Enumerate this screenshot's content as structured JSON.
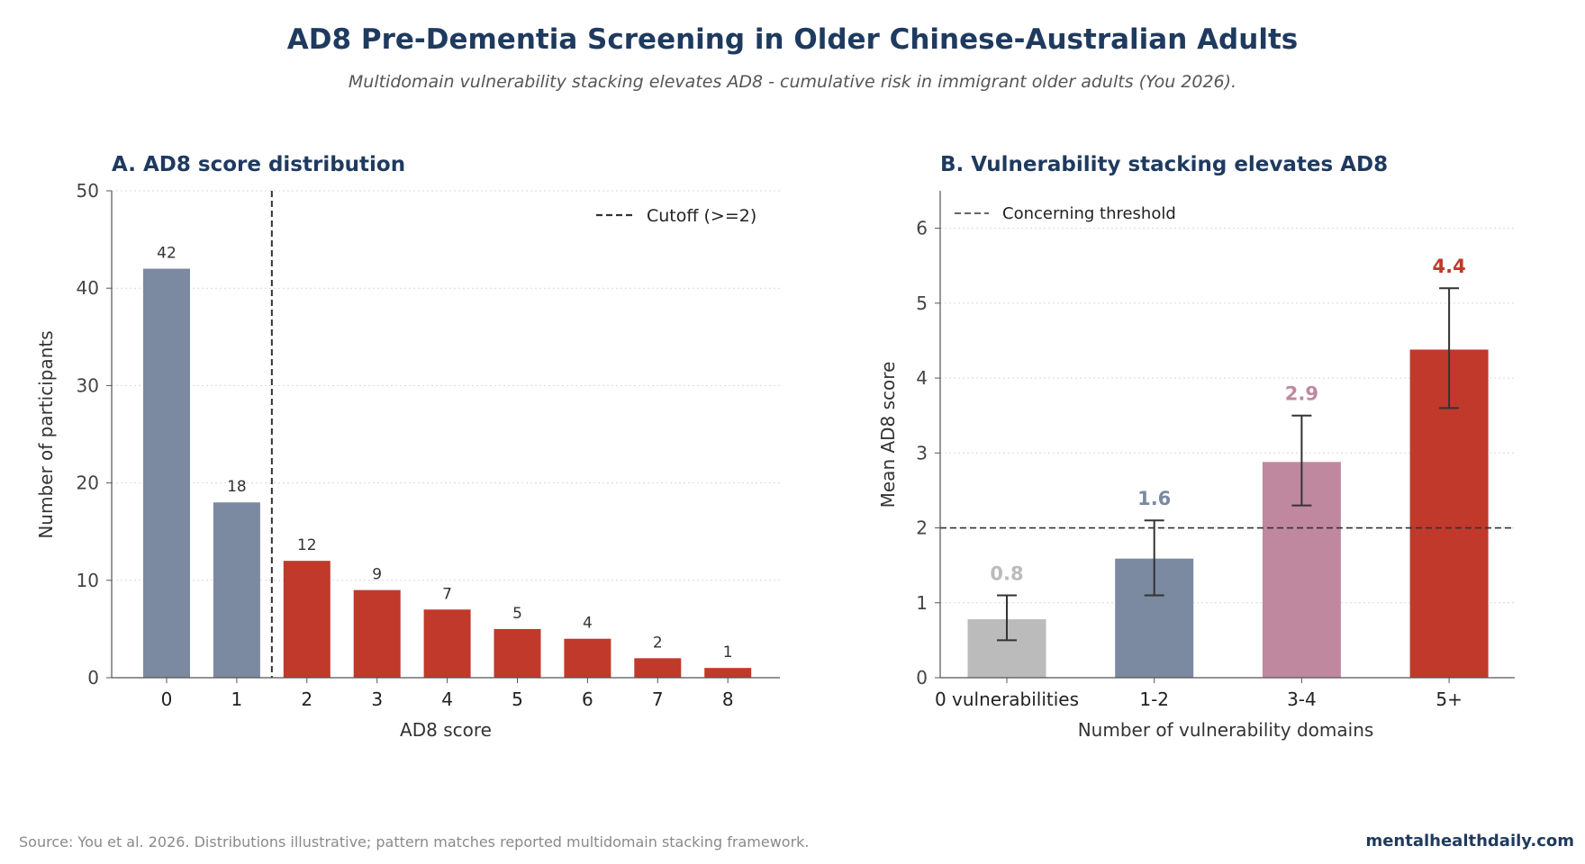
{
  "header": {
    "title": "AD8 Pre-Dementia Screening in Older Chinese-Australian Adults",
    "subtitle": "Multidomain vulnerability stacking elevates AD8 - cumulative risk in immigrant older adults (You 2026)."
  },
  "footer": {
    "source": "Source: You et al. 2026. Distributions illustrative; pattern matches reported multidomain stacking framework.",
    "brand": "mentalhealthdaily.com"
  },
  "colors": {
    "navy": "#1f3a5f",
    "slate": "#7b8aa1",
    "red": "#c0392b",
    "mauve": "#c0889e",
    "grey": "#bbbbbb"
  },
  "chart_data": [
    {
      "type": "bar",
      "title": "A. AD8 score distribution",
      "xlabel": "AD8 score",
      "ylabel": "Number of participants",
      "categories": [
        "0",
        "1",
        "2",
        "3",
        "4",
        "5",
        "6",
        "7",
        "8"
      ],
      "values": [
        42,
        18,
        12,
        9,
        7,
        5,
        4,
        2,
        1
      ],
      "data_labels": [
        "42",
        "18",
        "12",
        "9",
        "7",
        "5",
        "4",
        "2",
        "1"
      ],
      "bar_colors": [
        "#7b8aa1",
        "#7b8aa1",
        "#c0392b",
        "#c0392b",
        "#c0392b",
        "#c0392b",
        "#c0392b",
        "#c0392b",
        "#c0392b"
      ],
      "ylim": [
        0,
        50
      ],
      "yticks": [
        0,
        10,
        20,
        30,
        40,
        50
      ],
      "ytick_labels": [
        "0",
        "10",
        "20",
        "30",
        "40",
        "50"
      ],
      "reference_line": {
        "orientation": "vertical",
        "x": 1.5,
        "label": "Cutoff (>=2)"
      },
      "legend": "top-right",
      "grid": "horizontal dotted"
    },
    {
      "type": "bar",
      "title": "B. Vulnerability stacking elevates AD8",
      "xlabel": "Number of vulnerability domains",
      "ylabel": "Mean AD8 score",
      "categories": [
        "0 vulnerabilities",
        "1-2",
        "3-4",
        "5+"
      ],
      "values": [
        0.78,
        1.59,
        2.88,
        4.38
      ],
      "error_low": [
        0.5,
        1.1,
        2.3,
        3.6
      ],
      "error_high": [
        1.1,
        2.1,
        3.5,
        5.2
      ],
      "data_labels": [
        "0.8",
        "1.6",
        "2.9",
        "4.4"
      ],
      "bar_colors": [
        "#bbbbbb",
        "#7b8aa1",
        "#c0889e",
        "#c0392b"
      ],
      "ylim": [
        0,
        6.5
      ],
      "yticks": [
        0,
        1,
        2,
        3,
        4,
        5,
        6
      ],
      "ytick_labels": [
        "0",
        "1",
        "2",
        "3",
        "4",
        "5",
        "6"
      ],
      "reference_line": {
        "orientation": "horizontal",
        "y": 2,
        "label": "Concerning threshold"
      },
      "legend": "top-left",
      "grid": "horizontal dotted"
    }
  ]
}
